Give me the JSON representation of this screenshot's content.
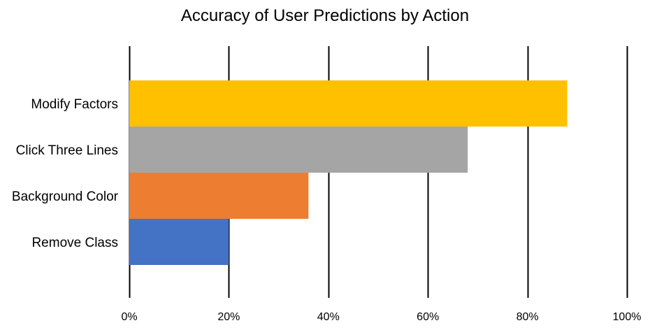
{
  "chart_data": {
    "type": "bar",
    "orientation": "horizontal",
    "title": "Accuracy of User Predictions by Action",
    "xlabel": "",
    "ylabel": "",
    "categories": [
      "Modify Factors",
      "Click Three Lines",
      "Background Color",
      "Remove Class"
    ],
    "values": [
      0.88,
      0.68,
      0.36,
      0.2
    ],
    "bar_colors": [
      "#FFC000",
      "#A5A5A5",
      "#ED7D31",
      "#4472C4"
    ],
    "xlim": [
      0,
      1
    ],
    "x_ticks": [
      0,
      0.2,
      0.4,
      0.6,
      0.8,
      1.0
    ],
    "x_tick_labels": [
      "0%",
      "20%",
      "40%",
      "60%",
      "80%",
      "100%"
    ],
    "grid": "vertical",
    "legend": "none"
  }
}
